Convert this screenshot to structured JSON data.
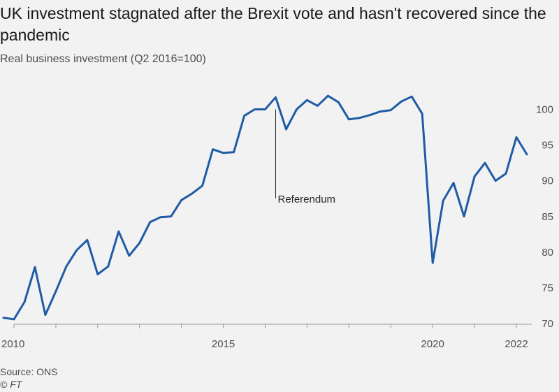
{
  "chart_data": {
    "type": "line",
    "title": "UK investment stagnated after the Brexit vote and hasn't recovered since the pandemic",
    "subtitle": "Real business investment (Q2 2016=100)",
    "xlabel": "",
    "ylabel": "",
    "xlim": [
      2010,
      2022.3
    ],
    "ylim": [
      70,
      102.5
    ],
    "x_ticks": [
      "2010",
      "2015",
      "2020",
      "2022"
    ],
    "y_ticks": [
      "70",
      "75",
      "80",
      "85",
      "90",
      "95",
      "100"
    ],
    "y_axis_side": "right",
    "grid": false,
    "color": "#1f5ba6",
    "series": [
      {
        "x": [
          2009.75,
          2010.0,
          2010.25,
          2010.5,
          2010.75,
          2011.0,
          2011.25,
          2011.5,
          2011.75,
          2012.0,
          2012.25,
          2012.5,
          2012.75,
          2013.0,
          2013.25,
          2013.5,
          2013.75,
          2014.0,
          2014.25,
          2014.5,
          2014.75,
          2015.0,
          2015.25,
          2015.5,
          2015.75,
          2016.0,
          2016.25,
          2016.5,
          2016.75,
          2017.0,
          2017.25,
          2017.5,
          2017.75,
          2018.0,
          2018.25,
          2018.5,
          2018.75,
          2019.0,
          2019.25,
          2019.5,
          2019.75,
          2020.0,
          2020.25,
          2020.5,
          2020.75,
          2021.0,
          2021.25,
          2021.5,
          2021.75,
          2022.0,
          2022.25
        ],
        "y": [
          70.8,
          70.6,
          73.0,
          77.9,
          71.2,
          74.5,
          78.0,
          80.3,
          81.7,
          76.9,
          78.0,
          82.9,
          79.5,
          81.3,
          84.2,
          84.9,
          85.0,
          87.3,
          88.2,
          89.3,
          94.4,
          93.9,
          94.0,
          99.1,
          100.0,
          100.0,
          101.7,
          97.2,
          100.0,
          101.3,
          100.5,
          101.9,
          101.0,
          98.6,
          98.8,
          99.2,
          99.7,
          99.9,
          101.1,
          101.8,
          99.4,
          78.5,
          87.2,
          89.7,
          85.0,
          90.6,
          92.5,
          90.0,
          91.0,
          96.1,
          93.7
        ]
      }
    ],
    "annotations": [
      {
        "text": "Referendum",
        "x": 2016.25,
        "y": 100.0
      }
    ]
  },
  "source": "Source: ONS",
  "credit": "© FT"
}
